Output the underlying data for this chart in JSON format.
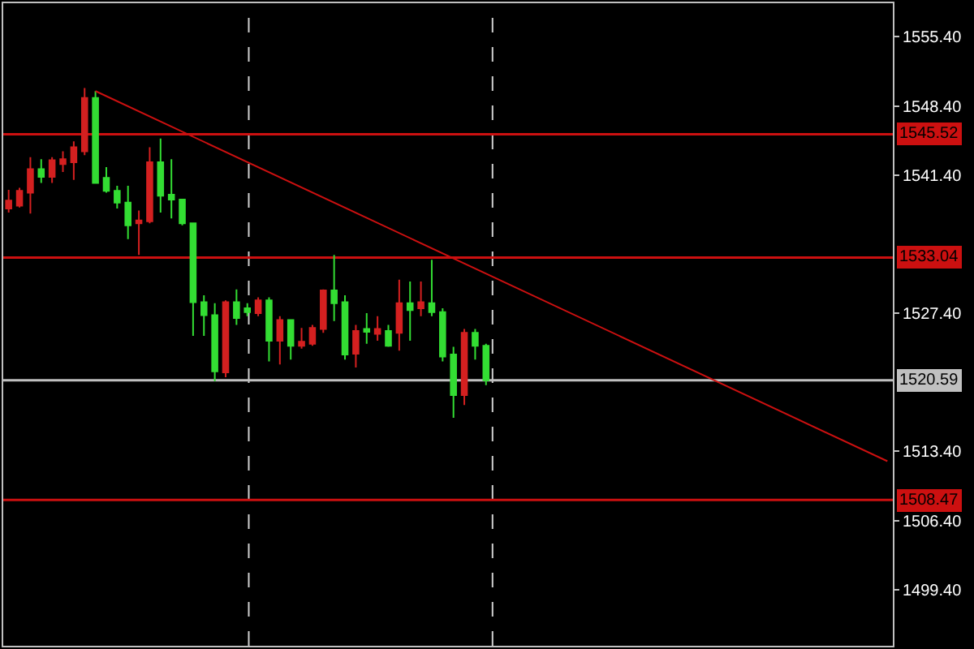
{
  "chart_data": {
    "type": "candlestick",
    "categories": [
      null,
      null,
      null,
      null,
      null,
      null,
      null,
      null,
      null,
      null,
      null,
      null,
      null,
      null,
      null,
      null,
      null,
      null,
      null,
      null,
      null,
      null,
      null,
      null,
      null,
      null,
      null,
      null,
      null,
      null,
      null,
      null,
      null,
      null,
      null,
      null,
      null,
      null,
      null,
      null,
      null,
      null,
      null,
      null,
      null,
      null,
      null,
      null,
      null,
      null,
      null,
      null,
      null,
      null,
      null,
      null,
      null,
      null,
      null,
      null,
      null,
      null,
      null,
      null,
      null,
      null,
      null,
      null,
      null,
      null,
      null,
      null,
      null,
      null,
      null,
      null,
      null,
      null,
      null,
      null,
      null,
      null
    ],
    "ylim": [
      1493.7,
      1558.8
    ],
    "yticks": [
      {
        "value": 1555.4,
        "label": "1555.40"
      },
      {
        "value": 1548.4,
        "label": "1548.40"
      },
      {
        "value": 1541.4,
        "label": "1541.40"
      },
      {
        "value": 1527.4,
        "label": "1527.40"
      },
      {
        "value": 1513.4,
        "label": "1513.40"
      },
      {
        "value": 1506.4,
        "label": "1506.40"
      },
      {
        "value": 1499.4,
        "label": "1499.40"
      }
    ],
    "tick_labels": "y",
    "series": [
      {
        "ohlc": [
          [
            1538.0,
            1539.9,
            1537.6,
            1538.8
          ],
          [
            1538.3,
            1540.1,
            1538.1,
            1539.8
          ],
          [
            1539.6,
            1543.2,
            1537.5,
            1542.0
          ],
          [
            1542.0,
            1543.0,
            1540.6,
            1541.2
          ],
          [
            1541.2,
            1543.2,
            1540.6,
            1542.9
          ],
          [
            1542.5,
            1543.8,
            1541.7,
            1543.0
          ],
          [
            1542.7,
            1544.8,
            1540.9,
            1544.2
          ],
          [
            1543.8,
            1550.2,
            1543.4,
            1549.2
          ],
          [
            1549.2,
            1549.9,
            1540.6,
            1540.6
          ],
          [
            1541.1,
            1542.2,
            1539.6,
            1539.8
          ],
          [
            1539.8,
            1540.3,
            1538.0,
            1538.6
          ],
          [
            1538.6,
            1540.3,
            1534.9,
            1536.3
          ],
          [
            1536.5,
            1537.8,
            1533.3,
            1536.8
          ],
          [
            1536.7,
            1544.2,
            1536.5,
            1542.7
          ],
          [
            1542.7,
            1545.1,
            1537.6,
            1539.3
          ],
          [
            1539.4,
            1543.0,
            1537.0,
            1538.9
          ],
          [
            1538.9,
            1538.9,
            1536.3,
            1536.5
          ],
          [
            1536.5,
            1536.5,
            1525.1,
            1528.5
          ],
          [
            1528.5,
            1529.2,
            1525.1,
            1527.2
          ],
          [
            1527.2,
            1528.4,
            1520.5,
            1521.5
          ],
          [
            1521.4,
            1528.7,
            1520.9,
            1528.5
          ],
          [
            1528.5,
            1529.8,
            1526.2,
            1526.9
          ],
          [
            1527.9,
            1528.4,
            1527.1,
            1527.5
          ],
          [
            1527.4,
            1529.0,
            1527.1,
            1528.7
          ],
          [
            1528.7,
            1529.0,
            1522.5,
            1524.6
          ],
          [
            1524.6,
            1527.1,
            1522.2,
            1526.7
          ],
          [
            1526.7,
            1526.7,
            1522.7,
            1524.1
          ],
          [
            1524.1,
            1525.9,
            1523.8,
            1524.5
          ],
          [
            1524.3,
            1526.2,
            1524.1,
            1525.9
          ],
          [
            1525.8,
            1529.8,
            1525.4,
            1529.7
          ],
          [
            1529.7,
            1533.3,
            1526.6,
            1528.4
          ],
          [
            1528.5,
            1529.2,
            1522.7,
            1523.2
          ],
          [
            1523.3,
            1526.2,
            1521.9,
            1525.6
          ],
          [
            1525.8,
            1527.4,
            1524.3,
            1525.5
          ],
          [
            1525.3,
            1527.1,
            1524.6,
            1525.8
          ],
          [
            1525.6,
            1526.2,
            1524.0,
            1524.1
          ],
          [
            1525.4,
            1530.8,
            1523.6,
            1528.4
          ],
          [
            1528.4,
            1530.6,
            1524.6,
            1527.7
          ],
          [
            1527.9,
            1530.6,
            1527.1,
            1528.5
          ],
          [
            1528.4,
            1532.8,
            1527.1,
            1527.5
          ],
          [
            1527.5,
            1527.9,
            1522.5,
            1523.0
          ],
          [
            1523.2,
            1524.0,
            1516.8,
            1519.1
          ],
          [
            1519.1,
            1525.8,
            1518.1,
            1525.4
          ],
          [
            1525.4,
            1525.8,
            1522.7,
            1524.1
          ],
          [
            1524.1,
            1524.3,
            1520.1,
            1520.59
          ],
          null,
          null,
          null,
          null,
          null,
          null,
          null,
          null,
          null,
          null,
          null,
          null,
          null,
          null,
          null,
          null,
          null,
          null,
          null,
          null,
          null,
          null,
          null,
          null,
          null,
          null,
          null,
          null,
          null,
          null,
          null,
          null,
          null,
          null,
          null,
          null,
          null
        ],
        "colors": [
          "#d42020",
          "#d42020",
          "#d42020",
          "#33dd33",
          "#d42020",
          "#d42020",
          "#d42020",
          "#d42020",
          "#33dd33",
          "#33dd33",
          "#33dd33",
          "#33dd33",
          "#d42020",
          "#d42020",
          "#33dd33",
          "#33dd33",
          "#33dd33",
          "#33dd33",
          "#33dd33",
          "#33dd33",
          "#d42020",
          "#33dd33",
          "#33dd33",
          "#d42020",
          "#33dd33",
          "#d42020",
          "#33dd33",
          "#d42020",
          "#d42020",
          "#d42020",
          "#33dd33",
          "#33dd33",
          "#d42020",
          "#33dd33",
          "#d42020",
          "#33dd33",
          "#d42020",
          "#33dd33",
          "#d42020",
          "#33dd33",
          "#33dd33",
          "#33dd33",
          "#d42020",
          "#33dd33",
          "#33dd33",
          null,
          null,
          null,
          null,
          null,
          null,
          null,
          null,
          null,
          null,
          null,
          null,
          null,
          null,
          null,
          null,
          null,
          null,
          null,
          null,
          null,
          null,
          null,
          null,
          null,
          null,
          null,
          null,
          null,
          null,
          null,
          null,
          null,
          null,
          null,
          null,
          null
        ]
      },
      {
        "type": "line",
        "values": [
          null,
          null,
          null,
          null,
          null,
          null,
          null,
          null,
          1549.9,
          null,
          null,
          null,
          null,
          null,
          null,
          null,
          null,
          null,
          null,
          null,
          null,
          null,
          null,
          null,
          null,
          null,
          null,
          null,
          null,
          null,
          null,
          null,
          null,
          null,
          null,
          null,
          null,
          null,
          null,
          null,
          null,
          null,
          null,
          null,
          null,
          null,
          null,
          null,
          null,
          null,
          null,
          null,
          null,
          null,
          null,
          null,
          null,
          null,
          null,
          null,
          null,
          null,
          null,
          null,
          null,
          null,
          null,
          null,
          null,
          null,
          null,
          null,
          null,
          null,
          null,
          null,
          null,
          null,
          null,
          null,
          null,
          1512.4
        ],
        "color": "#cc1010"
      }
    ],
    "ref_lines": [
      {
        "axis": "y",
        "value": 1545.52,
        "label": "1545.52",
        "color": "#cc1010"
      },
      {
        "axis": "y",
        "value": 1533.04,
        "label": "1533.04",
        "color": "#cc1010"
      },
      {
        "axis": "y",
        "value": 1520.59,
        "label": "1520.59",
        "color": "#c0c0c0"
      },
      {
        "axis": "y",
        "value": 1508.47,
        "label": "1508.47",
        "color": "#cc1010"
      }
    ],
    "grid": false
  }
}
